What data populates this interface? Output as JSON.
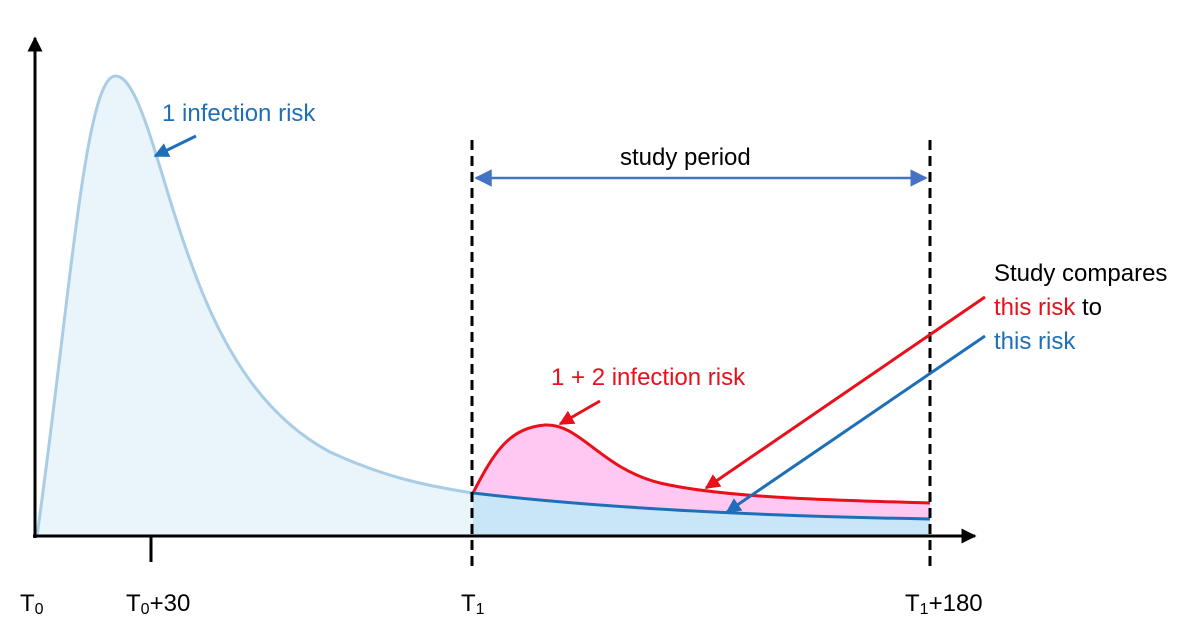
{
  "colors": {
    "first_infection": "#a9cde5",
    "first_fill": "#eaf4fb",
    "second_fill": "#c8e6f6",
    "blue_text": "#1f6fb8",
    "red": "#e8101a",
    "pink_fill": "#ffc8f2",
    "period_arrow": "#4472c4",
    "axis": "#000000"
  },
  "labels": {
    "one_infection": "1 infection risk",
    "one_plus_two": "1 + 2 infection risk",
    "study_period": "study period",
    "compares_line1": "Study compares",
    "compares_this_risk_red": "this risk",
    "compares_to": " to",
    "compares_this_risk_blue": "this risk"
  },
  "ticks": {
    "t0_base": "T",
    "t0_sub": "0",
    "t030_base": "T",
    "t030_sub": "0",
    "t030_suffix": "+30",
    "t1_base": "T",
    "t1_sub": "1",
    "t1180_base": "T",
    "t1180_sub": "1",
    "t1180_suffix": "+180"
  }
}
